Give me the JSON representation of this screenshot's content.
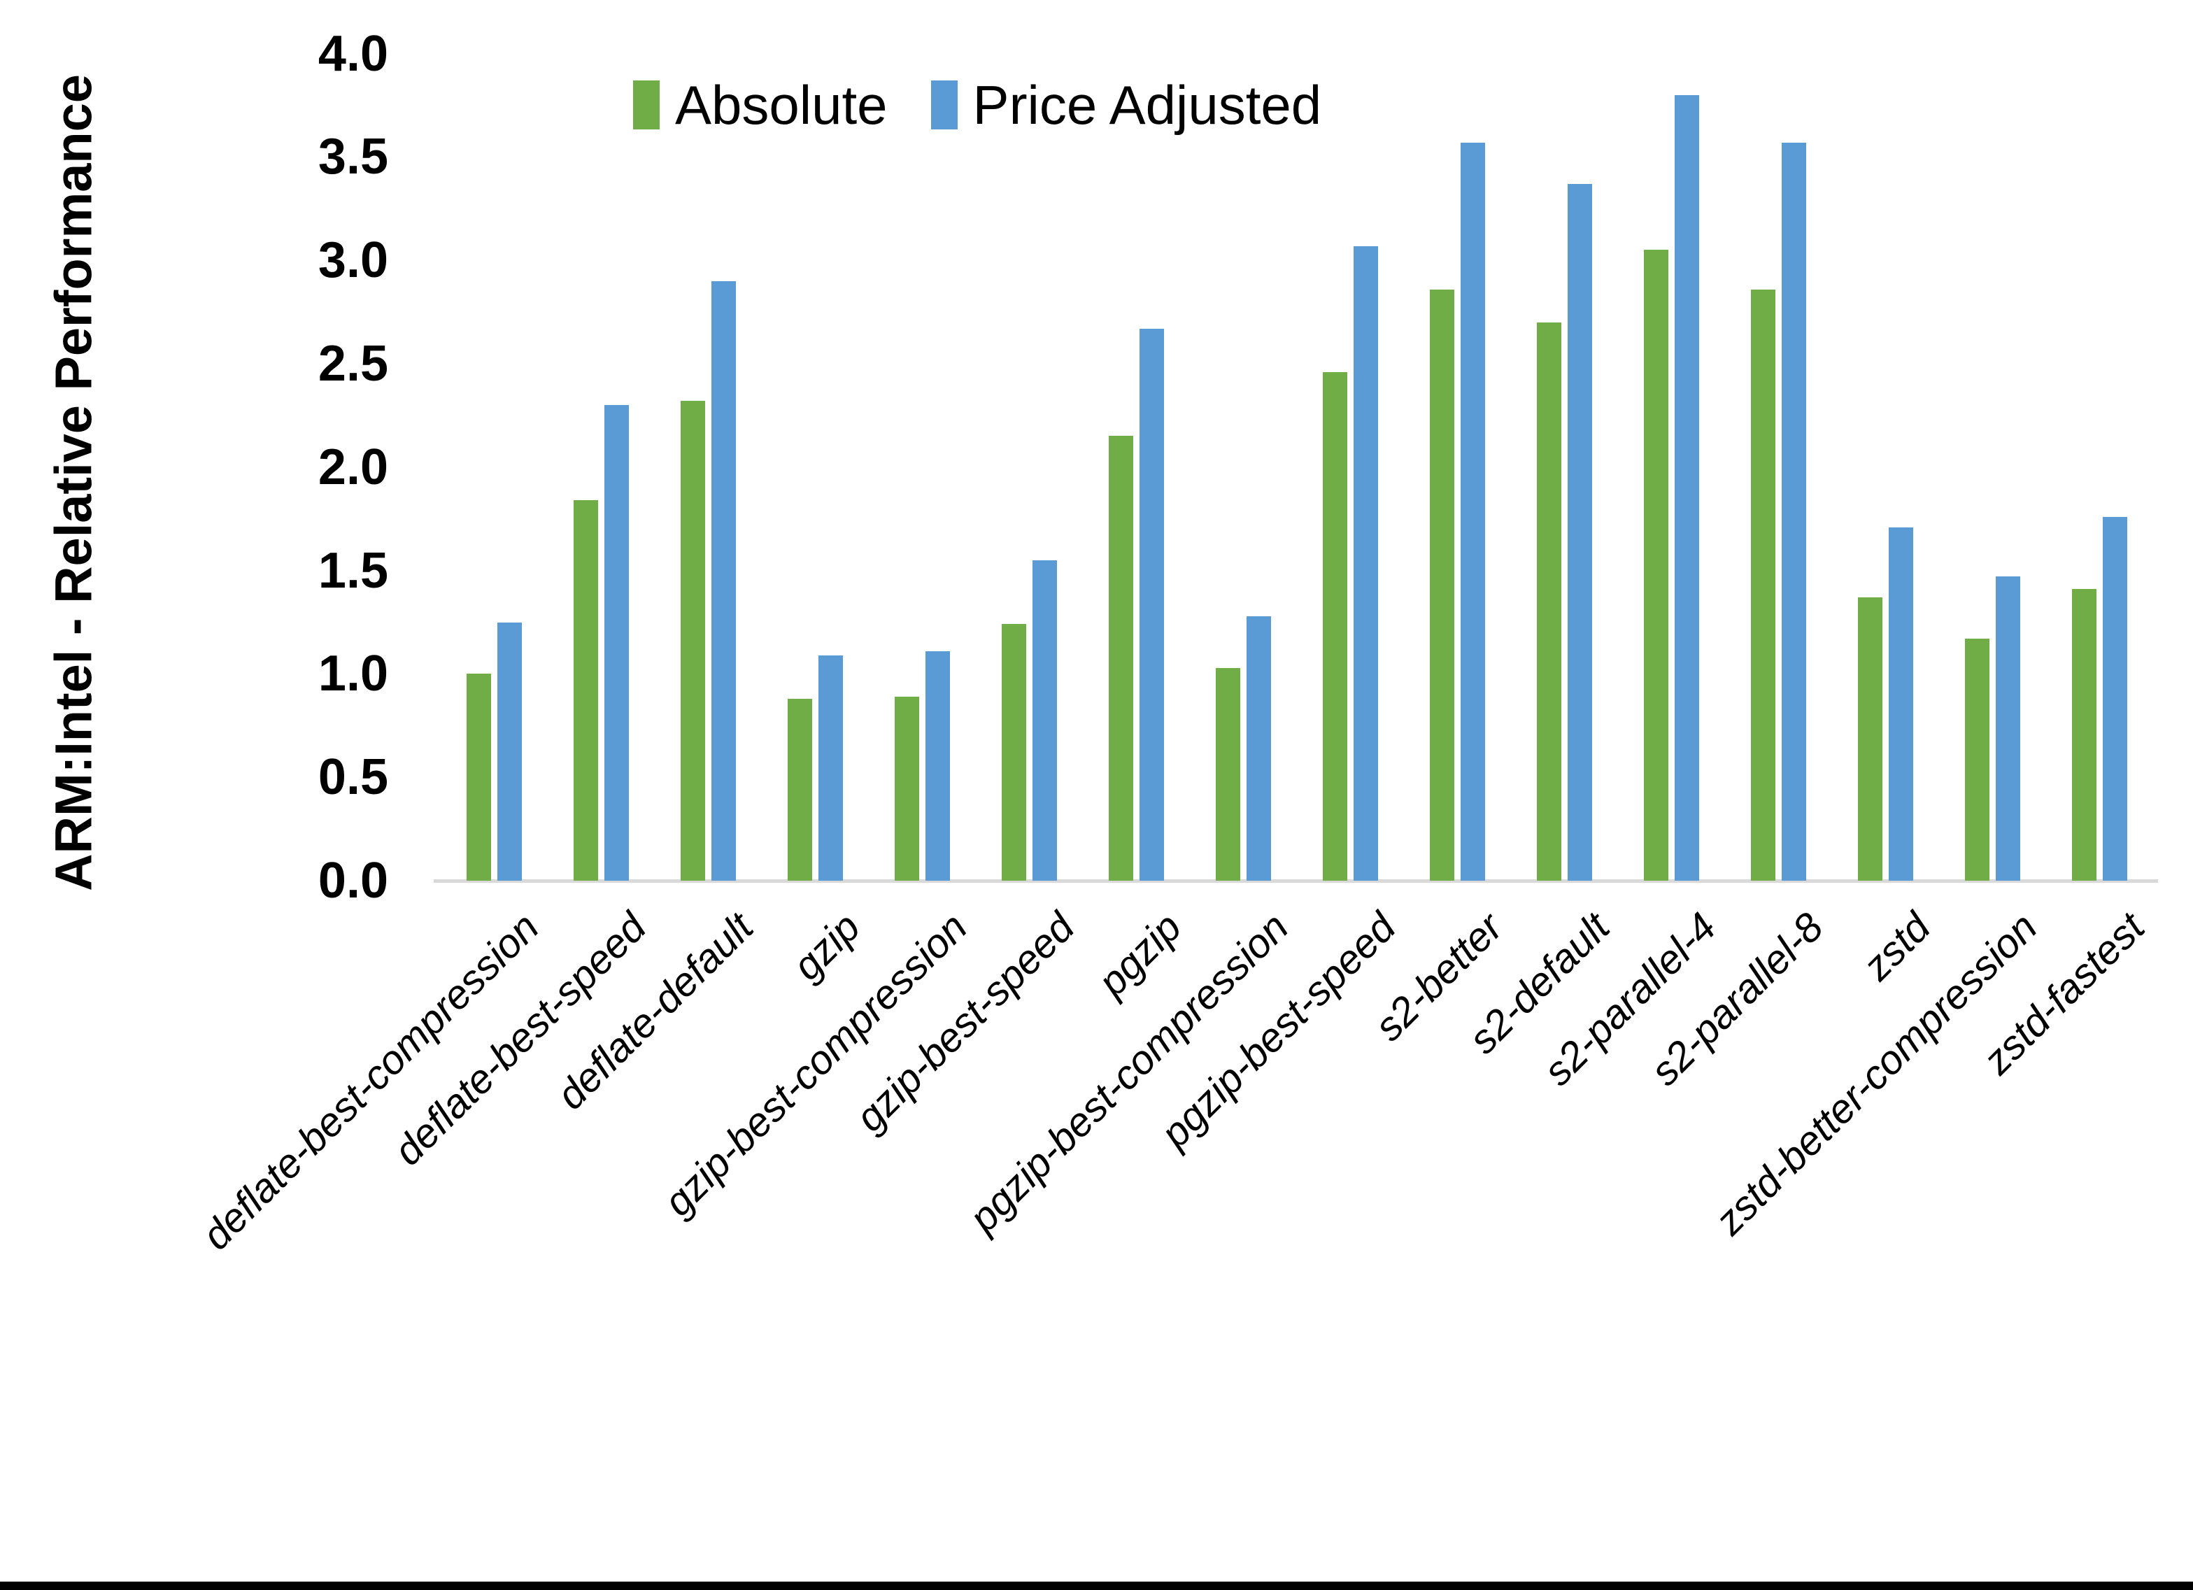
{
  "figure": {
    "background": "#FFFFFF",
    "bottom_border_color": "#000000"
  },
  "colors": {
    "absolute_series": "#70AD47",
    "price_adjusted_series": "#5B9BD5",
    "axis_line": "#D9D9D9",
    "text": "#000000"
  },
  "legend": {
    "position": "top",
    "items": [
      {
        "label": "Absolute",
        "color": "#70AD47"
      },
      {
        "label": "Price Adjusted",
        "color": "#5B9BD5"
      }
    ]
  },
  "chart_data": {
    "type": "bar",
    "title": "",
    "xlabel": "",
    "ylabel": "ARM:Intel - Relative Performance",
    "ylim": [
      0.0,
      4.0
    ],
    "ytick_step": 0.5,
    "ytick_labels": [
      "0.0",
      "0.5",
      "1.0",
      "1.5",
      "2.0",
      "2.5",
      "3.0",
      "3.5",
      "4.0"
    ],
    "grid": false,
    "legend_position": "top-center",
    "categories": [
      "deflate-best-compression",
      "deflate-best-speed",
      "deflate-default",
      "gzip",
      "gzip-best-compression",
      "gzip-best-speed",
      "pgzip",
      "pgzip-best-compression",
      "pgzip-best-speed",
      "s2-better",
      "s2-default",
      "s2-parallel-4",
      "s2-parallel-8",
      "zstd",
      "zstd-better-compression",
      "zstd-fastest"
    ],
    "series": [
      {
        "name": "Absolute",
        "color": "#70AD47",
        "values": [
          1.0,
          1.84,
          2.32,
          0.88,
          0.89,
          1.24,
          2.15,
          1.03,
          2.46,
          2.86,
          2.7,
          3.05,
          2.86,
          1.37,
          1.17,
          1.41
        ]
      },
      {
        "name": "Price Adjusted",
        "color": "#5B9BD5",
        "values": [
          1.25,
          2.3,
          2.9,
          1.09,
          1.11,
          1.55,
          2.67,
          1.28,
          3.07,
          3.57,
          3.37,
          3.8,
          3.57,
          1.71,
          1.47,
          1.76
        ]
      }
    ]
  }
}
